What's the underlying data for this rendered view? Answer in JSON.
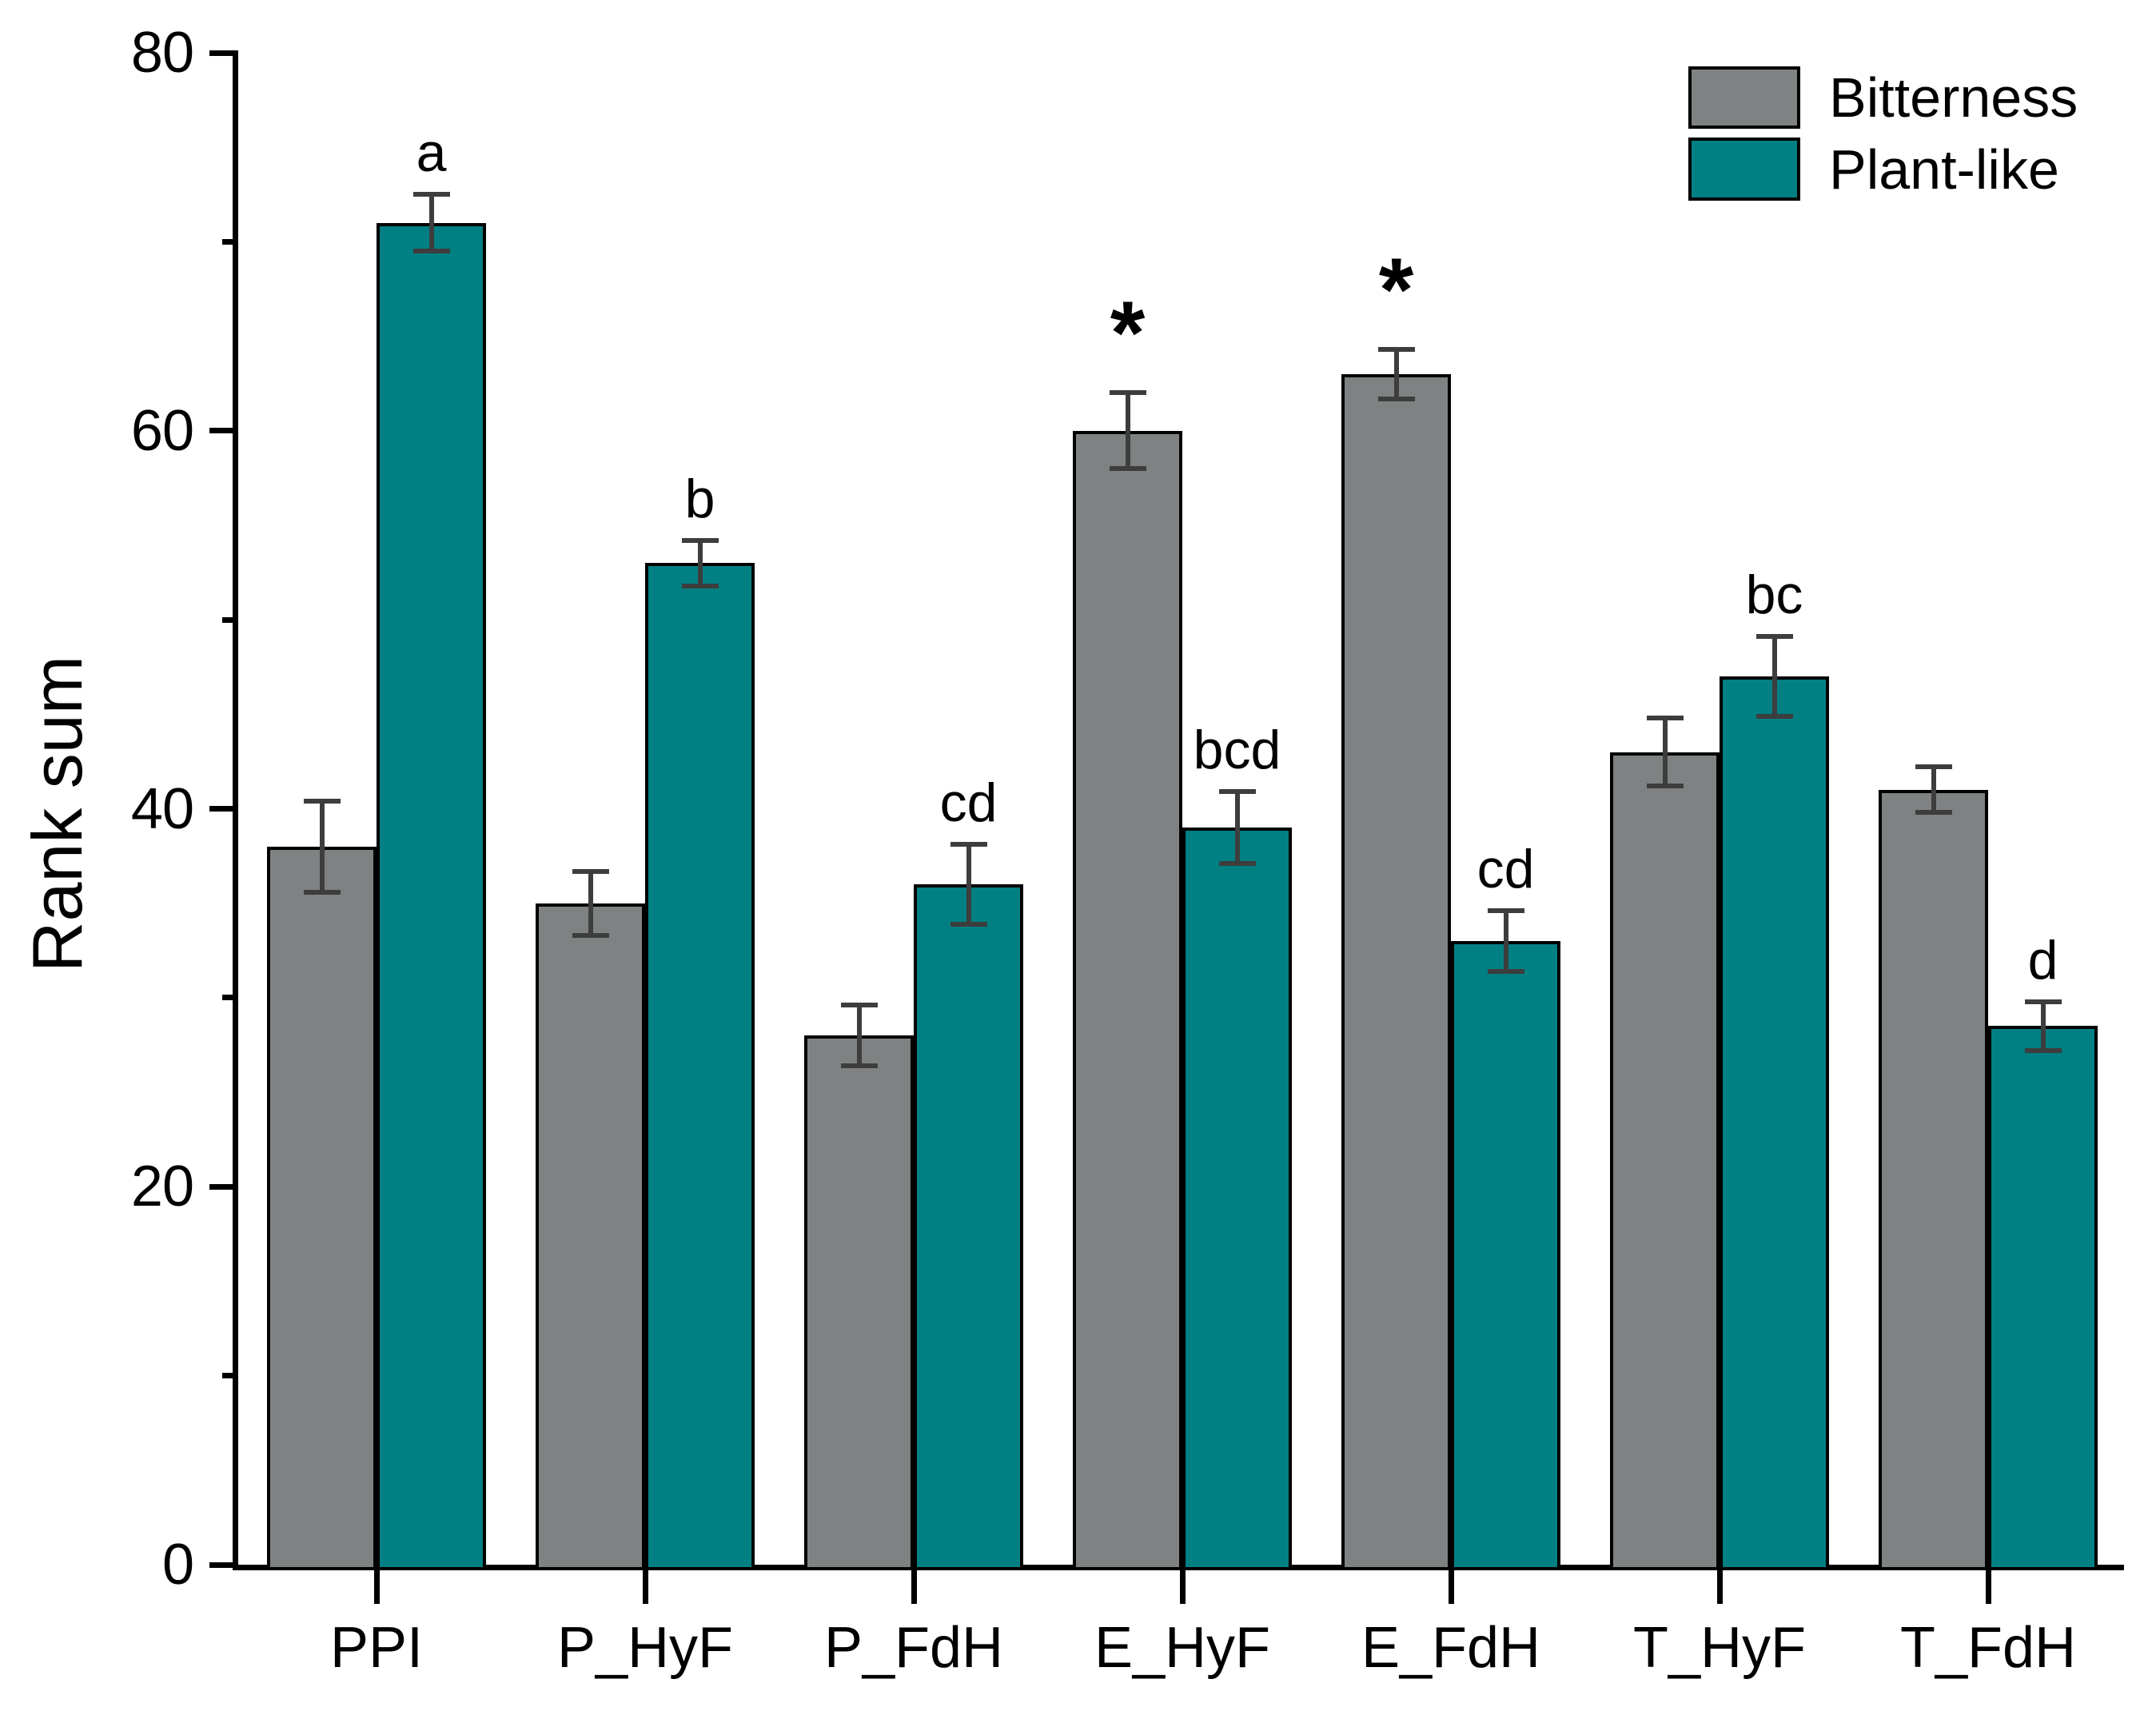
{
  "chart_data": {
    "type": "bar",
    "title": "",
    "xlabel": "",
    "ylabel": "Rank sum",
    "ylim": [
      0,
      80
    ],
    "yticks_major": [
      0,
      20,
      40,
      60,
      80
    ],
    "yticks_minor": [
      10,
      30,
      50,
      70
    ],
    "grid": false,
    "legend_position": "top-right",
    "categories": [
      "PPI",
      "P_HyF",
      "P_FdH",
      "E_HyF",
      "E_FdH",
      "T_HyF",
      "T_FdH"
    ],
    "series": [
      {
        "name": "Bitterness",
        "color": "#7F8283",
        "values": [
          38,
          35,
          28,
          60,
          63,
          43,
          41
        ],
        "errors": [
          2.4,
          1.7,
          1.6,
          2.0,
          1.3,
          1.8,
          1.2
        ],
        "sig_markers": [
          "",
          "",
          "",
          "*",
          "*",
          "",
          ""
        ]
      },
      {
        "name": "Plant-like",
        "color": "#008083",
        "values": [
          71,
          53,
          36,
          39,
          33,
          47,
          28.5
        ],
        "errors": [
          1.5,
          1.2,
          2.1,
          1.9,
          1.6,
          2.1,
          1.3
        ],
        "letters": [
          "a",
          "b",
          "cd",
          "bcd",
          "cd",
          "bc",
          "d"
        ]
      }
    ]
  }
}
